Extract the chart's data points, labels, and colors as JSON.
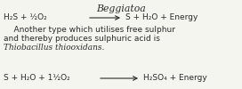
{
  "background_color": "#f5f5f0",
  "title": "Beggiatoa",
  "eq1_left": "H₂S + ½O₂",
  "eq1_right": "S + H₂O + Energy",
  "para1": "    Another type which utilises free sulphur",
  "para2": "and thereby produces sulphuric acid is",
  "para3": "Thiobacillus thiooxidans.",
  "eq2_left": "S + H₂O + 1½O₂",
  "eq2_right": "H₂SO₄ + Energy",
  "font_size_title": 7.8,
  "font_size_body": 6.5,
  "text_color": "#2a2a2a"
}
